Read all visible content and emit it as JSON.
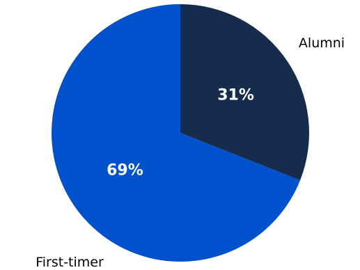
{
  "chart_data": {
    "type": "pie",
    "title": "",
    "slices": [
      {
        "label": "Alumni",
        "value": 31,
        "display": "31%",
        "color": "#172B4D"
      },
      {
        "label": "First-timer",
        "value": 69,
        "display": "69%",
        "color": "#0052CC"
      }
    ],
    "start_angle_deg": 0,
    "direction": "clockwise",
    "legend": "none",
    "label_color": "#FFFFFF"
  }
}
